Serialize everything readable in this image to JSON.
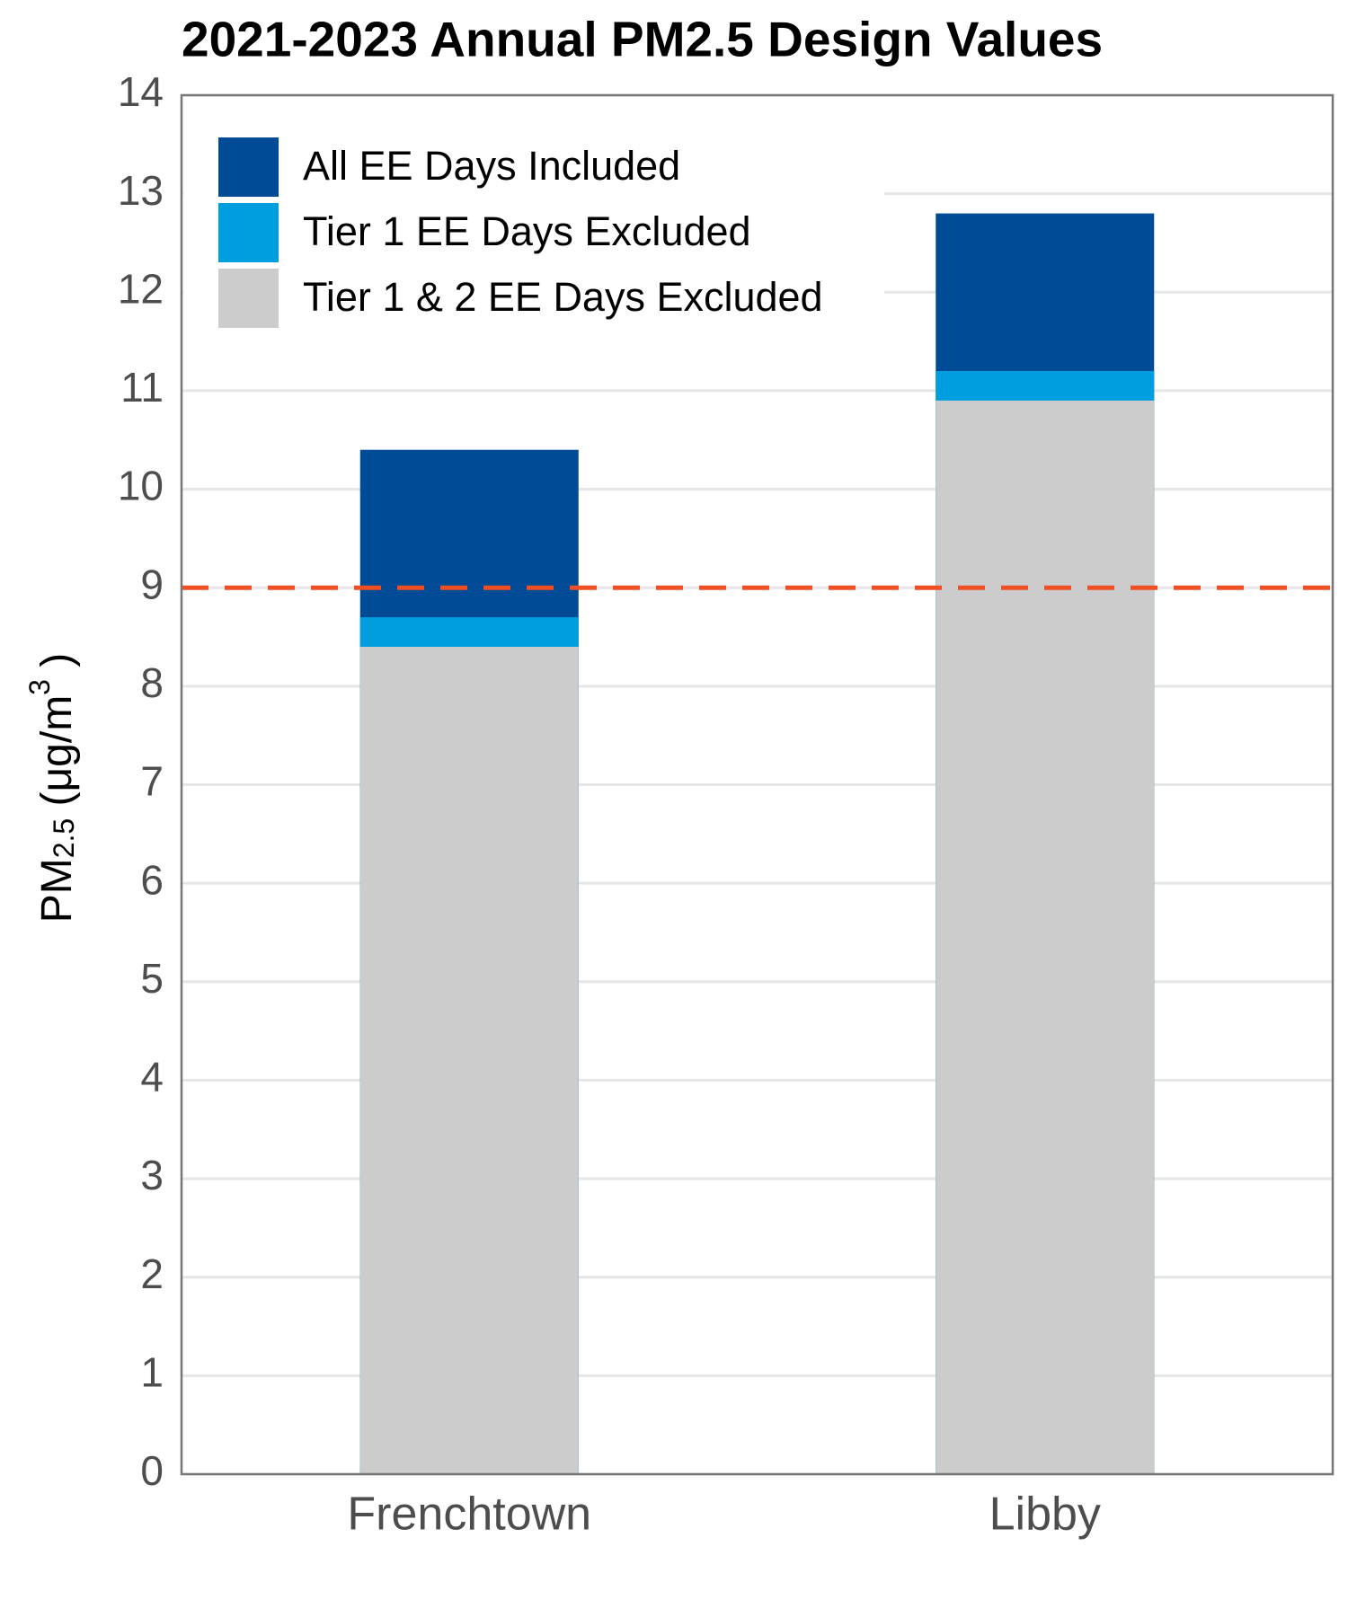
{
  "chart_data": {
    "type": "overlay_bar",
    "title": "2021-2023 Annual PM2.5 Design Values",
    "y_label": [
      "PM",
      "2.5",
      " (μg/m",
      "3",
      " )"
    ],
    "categories": [
      "Frenchtown",
      "Libby"
    ],
    "series": [
      {
        "name": "All EE Days Included",
        "color": "#004b96",
        "values": [
          10.4,
          12.8
        ]
      },
      {
        "name": "Tier 1 EE Days Excluded",
        "color": "#009ddf",
        "values": [
          8.7,
          11.2
        ]
      },
      {
        "name": "Tier 1 & 2 EE Days Excluded",
        "color": "#cccccc",
        "values": [
          8.4,
          10.9
        ]
      }
    ],
    "ylim": [
      0,
      14
    ],
    "yticks": [
      0,
      1,
      2,
      3,
      4,
      5,
      6,
      7,
      8,
      9,
      10,
      11,
      12,
      13,
      14
    ],
    "grid": true,
    "legend": "top-left",
    "reference_line": {
      "value": 9,
      "color": "#f04e23",
      "style": "dashed"
    }
  }
}
